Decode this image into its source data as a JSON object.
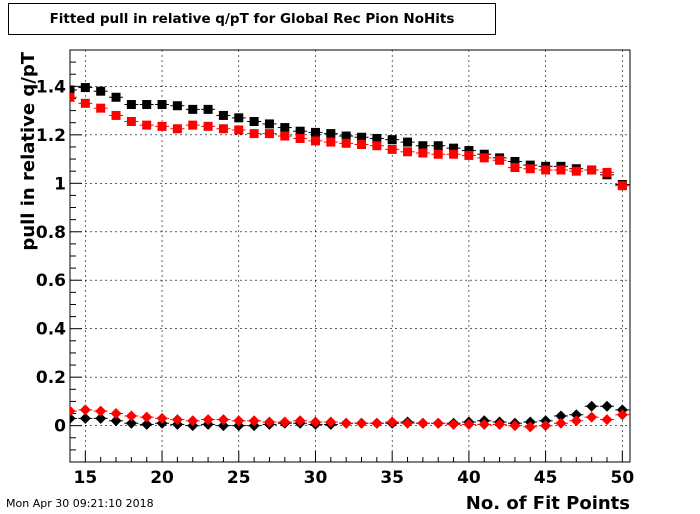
{
  "title": "Fitted pull in relative q/pT for Global Rec Pion NoHits",
  "timestamp": "Mon Apr 30 09:21:10 2018",
  "chart_data": {
    "type": "scatter",
    "title": "Fitted pull in relative q/pT for Global Rec Pion NoHits",
    "xlabel": "No. of Fit Points",
    "ylabel": "pull in relative q/pT",
    "xlim": [
      14,
      50.5
    ],
    "ylim": [
      -0.15,
      1.55
    ],
    "xticks": [
      15,
      20,
      25,
      30,
      35,
      40,
      45,
      50
    ],
    "yticks": [
      0,
      0.2,
      0.4,
      0.6,
      0.8,
      1,
      1.2,
      1.4
    ],
    "ytick_labels": [
      "0",
      "0.2",
      "0.4",
      "0.6",
      "0.8",
      "1",
      "1.2",
      "1.4"
    ],
    "grid": true,
    "x": [
      14,
      15,
      16,
      17,
      18,
      19,
      20,
      21,
      22,
      23,
      24,
      25,
      26,
      27,
      28,
      29,
      30,
      31,
      32,
      33,
      34,
      35,
      36,
      37,
      38,
      39,
      40,
      41,
      42,
      43,
      44,
      45,
      46,
      47,
      48,
      49,
      50
    ],
    "series": [
      {
        "marker": "square",
        "color": "#000000",
        "values": [
          1.385,
          1.395,
          1.38,
          1.355,
          1.325,
          1.325,
          1.325,
          1.32,
          1.305,
          1.305,
          1.28,
          1.27,
          1.255,
          1.245,
          1.23,
          1.215,
          1.21,
          1.205,
          1.195,
          1.19,
          1.185,
          1.18,
          1.17,
          1.155,
          1.155,
          1.145,
          1.135,
          1.12,
          1.105,
          1.09,
          1.075,
          1.07,
          1.07,
          1.06,
          1.055,
          1.035,
          0.995
        ]
      },
      {
        "marker": "square",
        "color": "#ff0000",
        "values": [
          1.355,
          1.33,
          1.31,
          1.28,
          1.255,
          1.24,
          1.235,
          1.225,
          1.24,
          1.235,
          1.225,
          1.22,
          1.205,
          1.205,
          1.195,
          1.185,
          1.175,
          1.17,
          1.165,
          1.16,
          1.155,
          1.14,
          1.13,
          1.125,
          1.12,
          1.12,
          1.115,
          1.105,
          1.095,
          1.065,
          1.06,
          1.055,
          1.055,
          1.05,
          1.055,
          1.045,
          0.99
        ]
      },
      {
        "marker": "diamond",
        "color": "#000000",
        "values": [
          0.03,
          0.03,
          0.03,
          0.02,
          0.01,
          0.005,
          0.01,
          0.005,
          0.0,
          0.005,
          0.0,
          0.0,
          0.0,
          0.005,
          0.01,
          0.01,
          0.005,
          0.005,
          0.01,
          0.01,
          0.01,
          0.01,
          0.015,
          0.01,
          0.01,
          0.01,
          0.015,
          0.02,
          0.015,
          0.01,
          0.015,
          0.02,
          0.04,
          0.045,
          0.08,
          0.08,
          0.065
        ]
      },
      {
        "marker": "diamond",
        "color": "#ff0000",
        "values": [
          0.06,
          0.065,
          0.06,
          0.05,
          0.04,
          0.035,
          0.03,
          0.025,
          0.02,
          0.025,
          0.025,
          0.02,
          0.02,
          0.015,
          0.015,
          0.02,
          0.015,
          0.015,
          0.01,
          0.01,
          0.01,
          0.015,
          0.01,
          0.01,
          0.01,
          0.005,
          0.005,
          0.005,
          0.005,
          0.0,
          -0.005,
          0.0,
          0.01,
          0.02,
          0.035,
          0.025,
          0.045
        ]
      }
    ]
  }
}
